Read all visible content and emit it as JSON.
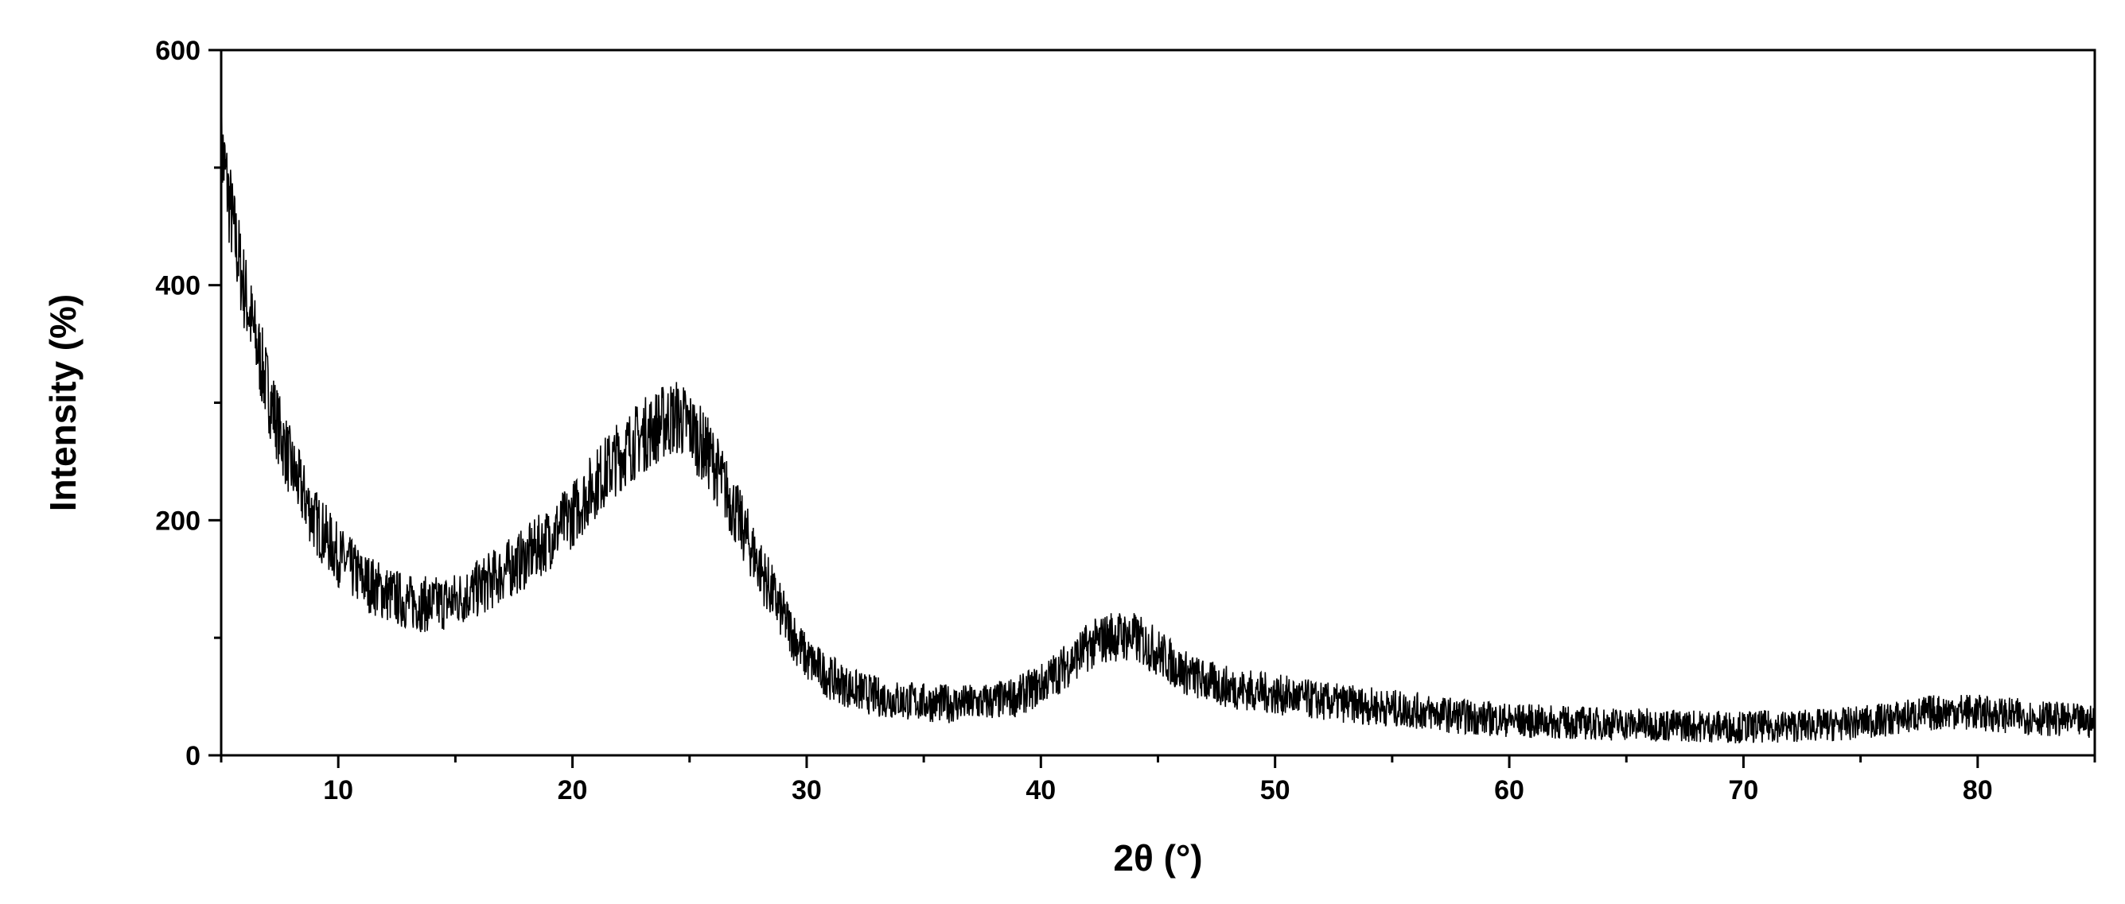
{
  "chart_data": {
    "type": "line",
    "title": "",
    "xlabel": "2θ (°)",
    "ylabel": "Intensity (%)",
    "xlim": [
      5,
      85
    ],
    "ylim": [
      0,
      600
    ],
    "x_ticks": [
      10,
      20,
      30,
      40,
      50,
      60,
      70,
      80
    ],
    "y_ticks": [
      0,
      200,
      400,
      600
    ],
    "grid": false,
    "legend": "none",
    "line_color": "#000000",
    "series": [
      {
        "x": [
          5,
          5.5,
          6,
          6.5,
          7,
          7.5,
          8,
          8.5,
          9,
          9.5,
          10,
          11,
          12,
          13,
          14,
          15,
          16,
          17,
          18,
          19,
          20,
          21,
          22,
          23,
          24,
          24.5,
          25,
          26,
          27,
          28,
          29,
          30,
          31,
          32,
          33,
          34,
          35,
          36,
          37,
          38,
          39,
          40,
          41,
          42,
          43,
          44,
          45,
          46,
          47,
          48,
          49,
          50,
          52,
          54,
          56,
          58,
          60,
          62,
          64,
          66,
          68,
          70,
          72,
          74,
          76,
          78,
          79,
          80,
          82,
          85
        ],
        "y": [
          520,
          450,
          395,
          350,
          310,
          275,
          245,
          222,
          200,
          185,
          170,
          150,
          138,
          130,
          128,
          132,
          142,
          155,
          168,
          185,
          205,
          232,
          255,
          272,
          285,
          288,
          280,
          250,
          205,
          160,
          118,
          82,
          66,
          56,
          50,
          47,
          45,
          44,
          44,
          46,
          50,
          60,
          75,
          92,
          102,
          100,
          88,
          72,
          63,
          58,
          55,
          52,
          46,
          42,
          38,
          33,
          30,
          28,
          27,
          26,
          25,
          24,
          25,
          26,
          30,
          36,
          38,
          36,
          33,
          28
        ]
      }
    ]
  }
}
